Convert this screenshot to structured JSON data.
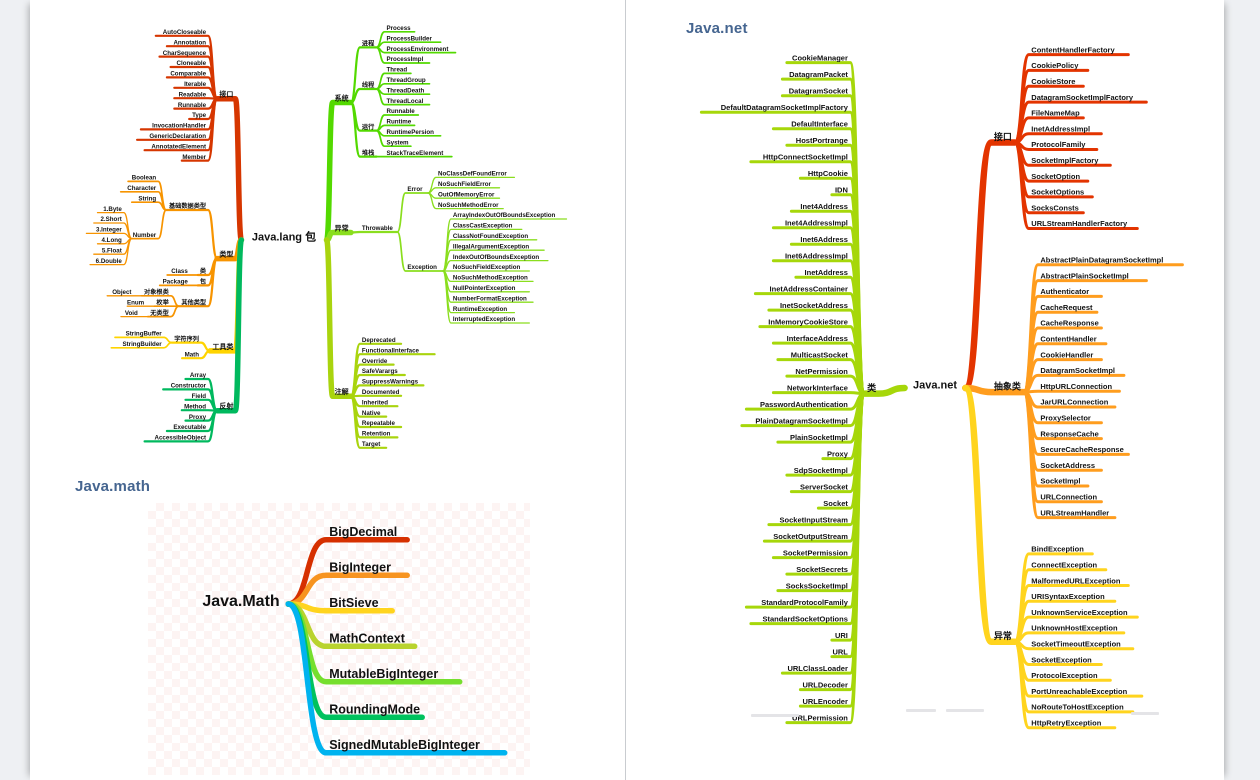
{
  "page": {
    "header_color": "#456590",
    "math_header": "Java.math",
    "net_header": "Java.net"
  },
  "maps": {
    "javalang": {
      "center": "Java.lang 包",
      "left": [
        {
          "label": "接口",
          "color": "#d63600",
          "children": [
            "AutoCloseable",
            "Annotation",
            "CharSequence",
            "Cloneable",
            "Comparable",
            "Iterable",
            "Readable",
            "Runnable",
            "Type",
            "InvocationHandler",
            "GenericDeclaration",
            "AnnotatedElement",
            "Member"
          ]
        },
        {
          "label": "类型",
          "color": "#f79400",
          "children": [
            {
              "label": "基础数据类型",
              "children": [
                "Boolean",
                "Character",
                "String",
                {
                  "label": "Number",
                  "children": [
                    "1.Byte",
                    "2.Short",
                    "3.Integer",
                    "4.Long",
                    "5.Float",
                    "6.Double"
                  ]
                }
              ]
            },
            {
              "label": "类",
              "children": [
                "Class"
              ]
            },
            {
              "label": "包",
              "children": [
                "Package"
              ]
            },
            {
              "label": "其他类型",
              "children": [
                {
                  "label": "对象根类",
                  "children": [
                    "Object"
                  ]
                },
                {
                  "label": "枚举",
                  "children": [
                    "Enum"
                  ]
                },
                {
                  "label": "无类型",
                  "children": [
                    "Void"
                  ]
                }
              ]
            }
          ]
        },
        {
          "label": "工具类",
          "color": "#ffd400",
          "children": [
            {
              "label": "字符序列",
              "children": [
                "StringBuffer",
                "StringBuilder"
              ]
            },
            "Math"
          ]
        },
        {
          "label": "反射",
          "color": "#00b95e",
          "children": [
            "Array",
            "Constructor",
            "Field",
            "Method",
            "Proxy",
            "Executable",
            "AccessibleObject"
          ]
        }
      ],
      "right": [
        {
          "label": "系统",
          "color": "#53d900",
          "children": [
            {
              "label": "进程",
              "children": [
                "Process",
                "ProcessBuilder",
                "ProcessEnvironment",
                "ProcessImpl"
              ]
            },
            {
              "label": "线程",
              "children": [
                "Thread",
                "ThreadGroup",
                "ThreadDeath",
                "ThreadLocal"
              ]
            },
            {
              "label": "运行",
              "children": [
                "Runnable",
                "Runtime",
                "RuntimePersion",
                "System"
              ]
            },
            {
              "label": "堆栈",
              "children": [
                "StackTraceElement"
              ]
            }
          ]
        },
        {
          "label": "异常",
          "color": "#8ade1e",
          "children": [
            {
              "label": "Throwable",
              "children": [
                {
                  "label": "Error",
                  "children": [
                    "NoClassDefFoundError",
                    "NoSuchFieldError",
                    "OutOfMemoryError",
                    "NoSuchMethodError"
                  ]
                },
                {
                  "label": "Exception",
                  "children": [
                    "ArrayIndexOutOfBoundsException",
                    "ClassCastException",
                    "ClassNotFoundException",
                    "IllegalArgumentException",
                    "IndexOutOfBoundsException",
                    "NoSuchFieldException",
                    "NoSuchMethodException",
                    "NullPointerException",
                    "NumberFormatException",
                    "RuntimeException",
                    "InterruptedException"
                  ]
                }
              ]
            }
          ]
        },
        {
          "label": "注解",
          "color": "#a9d40e",
          "children": [
            "Deprecated",
            "FunctionalInterface",
            "Override",
            "SafeVarargs",
            "SuppressWarnings",
            "Documented",
            "Inherited",
            "Native",
            "Repeatable",
            "Retention",
            "Target"
          ]
        }
      ]
    },
    "javamath": {
      "center": "Java.Math",
      "right": [
        {
          "label": "BigDecimal",
          "color": "#d63000"
        },
        {
          "label": "BigInteger",
          "color": "#f79420"
        },
        {
          "label": "BitSieve",
          "color": "#ffd41e"
        },
        {
          "label": "MathContext",
          "color": "#b9d32e"
        },
        {
          "label": "MutableBigInteger",
          "color": "#76df2e"
        },
        {
          "label": "RoundingMode",
          "color": "#00c25e"
        },
        {
          "label": "SignedMutableBigInteger",
          "color": "#00b3ef"
        }
      ]
    },
    "javanet": {
      "center": "Java.net",
      "left": [
        {
          "label": "类",
          "color": "#a6d70a",
          "children": [
            "CookieManager",
            "DatagramPacket",
            "DatagramSocket",
            "DefaultDatagramSocketImplFactory",
            "DefaultInterface",
            "HostPortrange",
            "HttpConnectSocketImpl",
            "HttpCookie",
            "IDN",
            "Inet4Address",
            "Inet4AddressImpl",
            "Inet6Address",
            "Inet6AddressImpl",
            "InetAddress",
            "InetAddressContainer",
            "InetSocketAddress",
            "InMemoryCookieStore",
            "InterfaceAddress",
            "MulticastSocket",
            "NetPermission",
            "NetworkInterface",
            "PasswordAuthentication",
            "PlainDatagramSocketImpl",
            "PlainSocketImpl",
            "Proxy",
            "SdpSocketImpl",
            "ServerSocket",
            "Socket",
            "SocketInputStream",
            "SocketOutputStream",
            "SocketPermission",
            "SocketSecrets",
            "SocksSocketImpl",
            "StandardProtocolFamily",
            "StandardSocketOptions",
            "URI",
            "URL",
            "URLClassLoader",
            "URLDecoder",
            "URLEncoder",
            "URLPermission"
          ]
        }
      ],
      "right": [
        {
          "label": "接口",
          "color": "#e33400",
          "children": [
            "ContentHandlerFactory",
            "CookiePolicy",
            "CookieStore",
            "DatagramSocketImplFactory",
            "FileNameMap",
            "InetAddressImpl",
            "ProtocolFamily",
            "SocketImplFactory",
            "SocketOption",
            "SocketOptions",
            "SocksConsts",
            "URLStreamHandlerFactory"
          ]
        },
        {
          "label": "抽象类",
          "color": "#ff9d1e",
          "children": [
            "AbstractPlainDatagramSocketImpl",
            "AbstractPlainSocketImpl",
            "Authenticator",
            "CacheRequest",
            "CacheResponse",
            "ContentHandler",
            "CookieHandler",
            "DatagramSocketImpl",
            "HttpURLConnection",
            "JarURLConnection",
            "ProxySelector",
            "ResponseCache",
            "SecureCacheResponse",
            "SocketAddress",
            "SocketImpl",
            "URLConnection",
            "URLStreamHandler"
          ]
        },
        {
          "label": "异常",
          "color": "#ffd41e",
          "children": [
            "BindException",
            "ConnectException",
            "MalformedURLException",
            "URISyntaxException",
            "UnknownServiceException",
            "UnknownHostException",
            "SocketTimeoutException",
            "SocketException",
            "ProtocolException",
            "PortUnreachableException",
            "NoRouteToHostException",
            "HttpRetryException"
          ]
        }
      ]
    }
  }
}
